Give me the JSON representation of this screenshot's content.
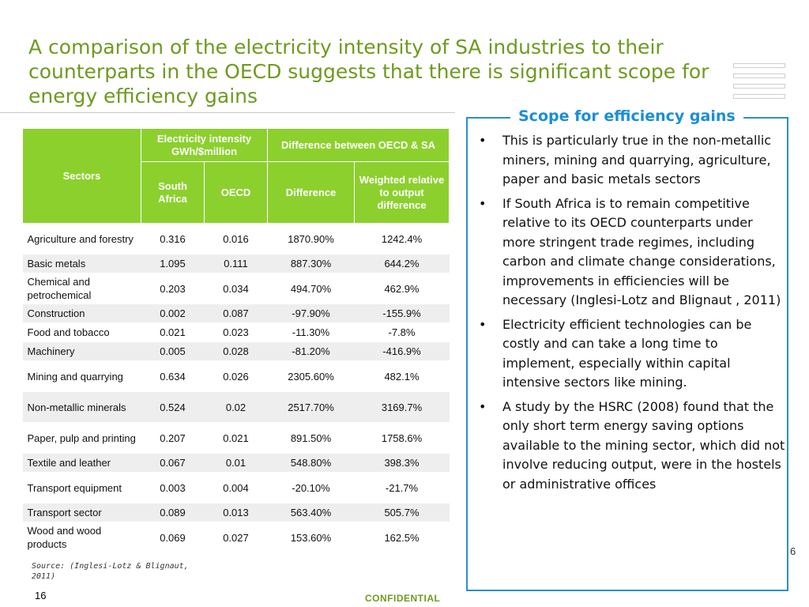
{
  "title": "A comparison of the electricity intensity of SA industries to their counterparts in the OECD suggests that there is significant scope for energy efficiency gains",
  "table": {
    "headers": {
      "sectors": "Sectors",
      "group1": "Electricity intensity GWh/$million",
      "group2": "Difference between OECD & SA",
      "south_africa": "South Africa",
      "oecd": "OECD",
      "difference": "Difference",
      "weighted": "Weighted relative to output difference"
    },
    "rows": [
      {
        "sector": "Agriculture and forestry",
        "sa": "0.316",
        "oecd": "0.016",
        "diff": "1870.90%",
        "weighted": "1242.4%"
      },
      {
        "sector": "Basic metals",
        "sa": "1.095",
        "oecd": "0.111",
        "diff": "887.30%",
        "weighted": "644.2%"
      },
      {
        "sector": "Chemical and petrochemical",
        "sa": "0.203",
        "oecd": "0.034",
        "diff": "494.70%",
        "weighted": "462.9%"
      },
      {
        "sector": "Construction",
        "sa": "0.002",
        "oecd": "0.087",
        "diff": "-97.90%",
        "weighted": "-155.9%"
      },
      {
        "sector": "Food and tobacco",
        "sa": "0.021",
        "oecd": "0.023",
        "diff": "-11.30%",
        "weighted": "-7.8%"
      },
      {
        "sector": "Machinery",
        "sa": "0.005",
        "oecd": "0.028",
        "diff": "-81.20%",
        "weighted": "-416.9%"
      },
      {
        "sector": "Mining and quarrying",
        "sa": "0.634",
        "oecd": "0.026",
        "diff": "2305.60%",
        "weighted": "482.1%"
      },
      {
        "sector": "Non-metallic minerals",
        "sa": "0.524",
        "oecd": "0.02",
        "diff": "2517.70%",
        "weighted": "3169.7%"
      },
      {
        "sector": "Paper, pulp and printing",
        "sa": "0.207",
        "oecd": "0.021",
        "diff": "891.50%",
        "weighted": "1758.6%"
      },
      {
        "sector": "Textile and leather",
        "sa": "0.067",
        "oecd": "0.01",
        "diff": "548.80%",
        "weighted": "398.3%"
      },
      {
        "sector": "Transport equipment",
        "sa": "0.003",
        "oecd": "0.004",
        "diff": "-20.10%",
        "weighted": "-21.7%"
      },
      {
        "sector": "Transport sector",
        "sa": "0.089",
        "oecd": "0.013",
        "diff": "563.40%",
        "weighted": "505.7%"
      },
      {
        "sector": "Wood and wood products",
        "sa": "0.069",
        "oecd": "0.027",
        "diff": "153.60%",
        "weighted": "162.5%"
      }
    ]
  },
  "source": "Source: (Inglesi-Lotz & Blignaut, 2011)",
  "page_number": "16",
  "side_number": "6",
  "confidential": "CONFIDENTIAL",
  "scope_box": {
    "title": "Scope for efficiency gains",
    "bullets": [
      "This is particularly true in the non-metallic miners, mining and quarrying, agriculture, paper and basic metals sectors",
      "If South Africa is to remain competitive relative to its OECD counterparts under more stringent trade regimes, including carbon and climate change considerations, improvements in efficiencies will be necessary (Inglesi-Lotz and Blignaut , 2011)",
      "Electricity efficient technologies can be costly and can take a long time to implement, especially within capital intensive sectors like mining.",
      " A study by the HSRC (2008) found that the only short term energy saving options available to the mining sector, which did not involve reducing output, were in the hostels or administrative offices"
    ]
  },
  "colors": {
    "title_green": "#6E9A1E",
    "header_green": "#8CD02E",
    "box_blue": "#2a8fd3"
  }
}
